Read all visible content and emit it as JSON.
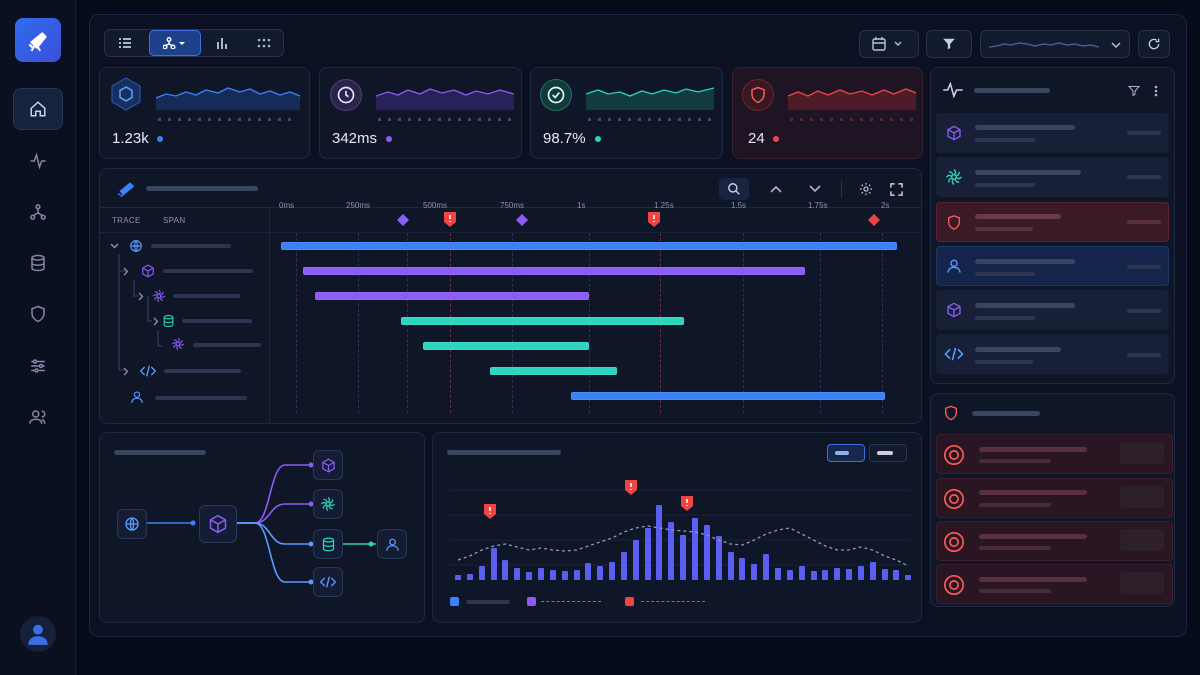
{
  "kpis": [
    {
      "value": "1.23k",
      "color": "#3b82f6",
      "icon": "cube-hexagon-icon"
    },
    {
      "value": "342ms",
      "color": "#8b5cf6",
      "icon": "clock-icon"
    },
    {
      "value": "98.7%",
      "color": "#2dd4bf",
      "icon": "check-circle-icon"
    },
    {
      "value": "24",
      "color": "#ef4444",
      "icon": "shield-icon"
    }
  ],
  "trace": {
    "headers": [
      "TRACE",
      "SPAN"
    ],
    "ticks": [
      "0ms",
      "250ms",
      "500ms",
      "750ms",
      "1s",
      "1.25s",
      "1.5s",
      "1.75s",
      "2s"
    ],
    "spans": [
      {
        "start": 0,
        "end": 2,
        "color": "#3b82f6"
      },
      {
        "start": 0.07,
        "end": 1.7,
        "color": "#8b5cf6"
      },
      {
        "start": 0.11,
        "end": 1.0,
        "color": "#8b5cf6"
      },
      {
        "start": 0.39,
        "end": 1.31,
        "color": "#2dd4bf"
      },
      {
        "start": 0.46,
        "end": 1.0,
        "color": "#2dd4bf"
      },
      {
        "start": 0.68,
        "end": 1.09,
        "color": "#2dd4bf"
      },
      {
        "start": 0.94,
        "end": 1.96,
        "color": "#3b82f6"
      }
    ]
  },
  "histogram": {
    "bars": [
      5,
      6,
      14,
      32,
      20,
      12,
      8,
      12,
      10,
      9,
      10,
      17,
      14,
      18,
      28,
      40,
      52,
      75,
      58,
      45,
      62,
      55,
      44,
      28,
      22,
      16,
      26,
      12,
      10,
      14,
      9,
      10,
      12,
      11,
      14,
      18,
      11,
      10,
      5
    ],
    "highlight": [
      0,
      0,
      0,
      0,
      0,
      0,
      0,
      0,
      0,
      0,
      0,
      0,
      0,
      0,
      0,
      0,
      0,
      0,
      0,
      0,
      0,
      0,
      0,
      0,
      0,
      0,
      0,
      0,
      0,
      0,
      0,
      0,
      0,
      0,
      0,
      0,
      0,
      0,
      0
    ],
    "trend": [
      20,
      24,
      30,
      34,
      36,
      33,
      30,
      32,
      30,
      29,
      30,
      34,
      38,
      42,
      48,
      52,
      54,
      52,
      50,
      49,
      48,
      45,
      40,
      36,
      35,
      40,
      46,
      50,
      52,
      46,
      40,
      34,
      30,
      30,
      33,
      30,
      24,
      20,
      14
    ]
  }
}
